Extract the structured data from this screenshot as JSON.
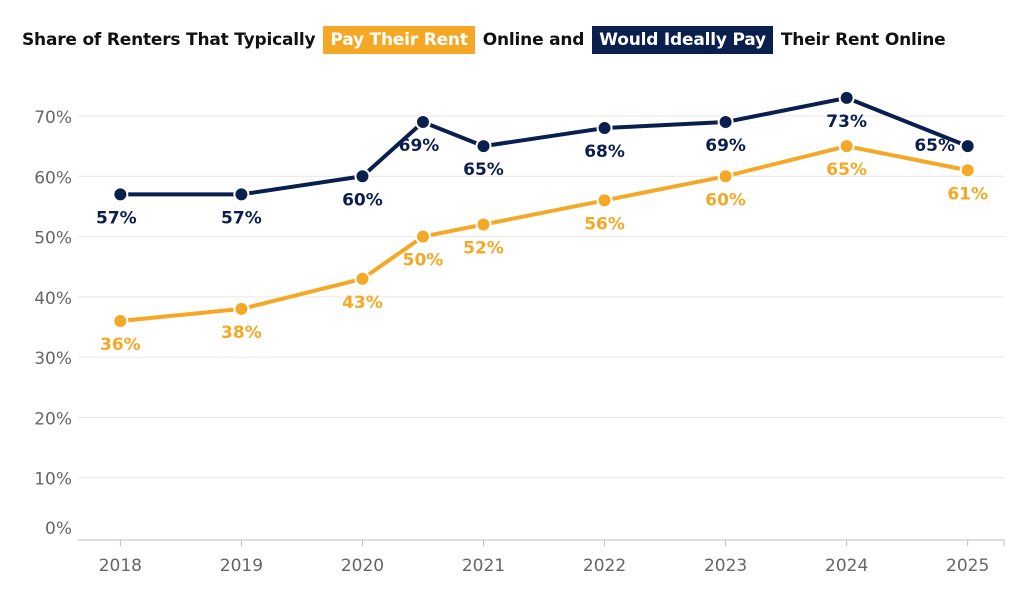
{
  "chart_data": {
    "type": "line",
    "title_parts": [
      {
        "text": "Share of Renters That Typically",
        "style": "plain"
      },
      {
        "text": "Pay Their Rent",
        "style": "orange"
      },
      {
        "text": "Online and",
        "style": "plain"
      },
      {
        "text": "Would Ideally Pay",
        "style": "navy"
      },
      {
        "text": "Their Rent Online",
        "style": "plain"
      }
    ],
    "x_ticks": [
      "2018",
      "2019",
      "2020",
      "2021",
      "2022",
      "2023",
      "2024",
      "2025"
    ],
    "y_ticks": [
      "0%",
      "10%",
      "20%",
      "30%",
      "40%",
      "50%",
      "60%",
      "70%"
    ],
    "ylim": [
      0,
      75
    ],
    "xlim": [
      2017.75,
      2025.4
    ],
    "grid": true,
    "series": [
      {
        "name": "Pay Their Rent",
        "color": "#f5a826",
        "x": [
          2018.1,
          2019.1,
          2020.1,
          2020.6,
          2021.1,
          2022.1,
          2023.1,
          2024.1,
          2025.1
        ],
        "values": [
          36,
          38,
          43,
          50,
          52,
          56,
          60,
          65,
          61
        ],
        "labels": [
          "36%",
          "38%",
          "43%",
          "50%",
          "52%",
          "56%",
          "60%",
          "65%",
          "61%"
        ]
      },
      {
        "name": "Would Ideally Pay",
        "color": "#0b1f4f",
        "x": [
          2018.1,
          2019.1,
          2020.1,
          2020.6,
          2021.1,
          2022.1,
          2023.1,
          2024.1,
          2025.1
        ],
        "values": [
          57,
          57,
          60,
          69,
          65,
          68,
          69,
          73,
          65
        ],
        "labels": [
          "57%",
          "57%",
          "60%",
          "69%",
          "65%",
          "68%",
          "69%",
          "73%",
          "65%"
        ]
      }
    ]
  }
}
